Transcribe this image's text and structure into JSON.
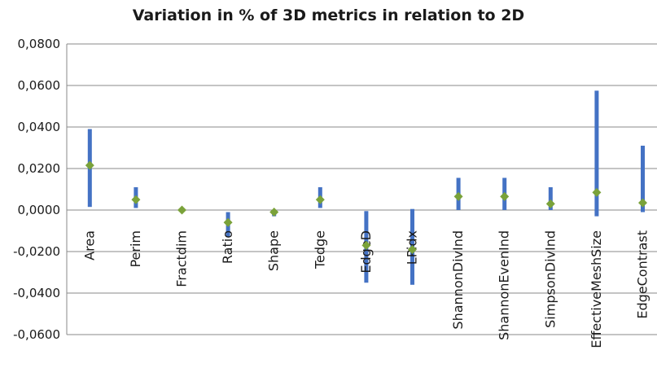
{
  "chart_data": {
    "type": "bar",
    "title": "Variation in % of 3D metrics in relation to 2D",
    "xlabel": "",
    "ylabel": "",
    "ylim": [
      -0.06,
      0.08
    ],
    "yticks": [
      0.08,
      0.06,
      0.04,
      0.02,
      0.0,
      -0.02,
      -0.04,
      -0.06
    ],
    "ytick_labels": [
      "0,0800",
      "0,0600",
      "0,0400",
      "0,0200",
      "0,0000",
      "-0,0200",
      "-0,0400",
      "-0,0600"
    ],
    "grid": true,
    "legend": "none",
    "categories": [
      "Area",
      "Perim",
      "Fractdim",
      "Ratio",
      "Shape",
      "Tedge",
      "EdgeD",
      "LPidx",
      "ShannonDivInd",
      "ShannonEvenInd",
      "SimpsonDivInd",
      "EffectiveMeshSize",
      "EdgeContrast"
    ],
    "series": [
      {
        "type": "range-bar",
        "color": "#4472c4",
        "low": [
          0.0015,
          0.001,
          0.0,
          -0.013,
          -0.003,
          0.001,
          -0.035,
          -0.036,
          0.0,
          0.0,
          0.0,
          -0.003,
          -0.001
        ],
        "high": [
          0.039,
          0.011,
          0.0,
          -0.001,
          0.0,
          0.011,
          -0.0005,
          0.0005,
          0.0155,
          0.0155,
          0.011,
          0.0575,
          0.031
        ]
      },
      {
        "type": "marker",
        "color": "#7aa23a",
        "values": [
          0.0215,
          0.005,
          0.0,
          -0.006,
          -0.001,
          0.005,
          -0.017,
          -0.019,
          0.0065,
          0.0065,
          0.003,
          0.0085,
          0.0035
        ]
      }
    ]
  }
}
